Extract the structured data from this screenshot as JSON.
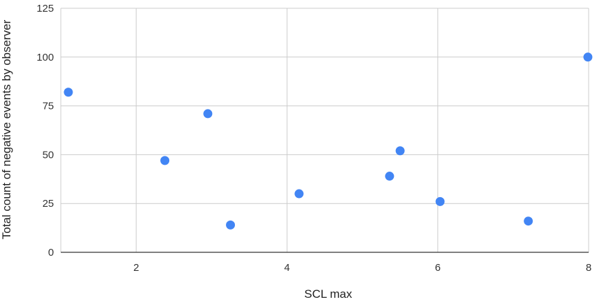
{
  "chart_data": {
    "type": "scatter",
    "title": "",
    "xlabel": "SCL max",
    "ylabel": "Total count of negative events by observer",
    "xlim": [
      1,
      8
    ],
    "ylim": [
      0,
      125
    ],
    "x_ticks": [
      2,
      4,
      6,
      8
    ],
    "y_ticks": [
      0,
      25,
      50,
      75,
      100,
      125
    ],
    "grid": true,
    "legend": "none",
    "colors": {
      "point": "#4285F4",
      "grid": "#cccccc",
      "axis": "#333333"
    },
    "series": [
      {
        "points": [
          {
            "x": 1.1,
            "y": 82
          },
          {
            "x": 2.38,
            "y": 47
          },
          {
            "x": 2.95,
            "y": 71
          },
          {
            "x": 3.25,
            "y": 14
          },
          {
            "x": 4.16,
            "y": 30
          },
          {
            "x": 5.36,
            "y": 39
          },
          {
            "x": 5.5,
            "y": 52
          },
          {
            "x": 6.03,
            "y": 26
          },
          {
            "x": 7.2,
            "y": 16
          },
          {
            "x": 7.99,
            "y": 100
          }
        ]
      }
    ]
  }
}
